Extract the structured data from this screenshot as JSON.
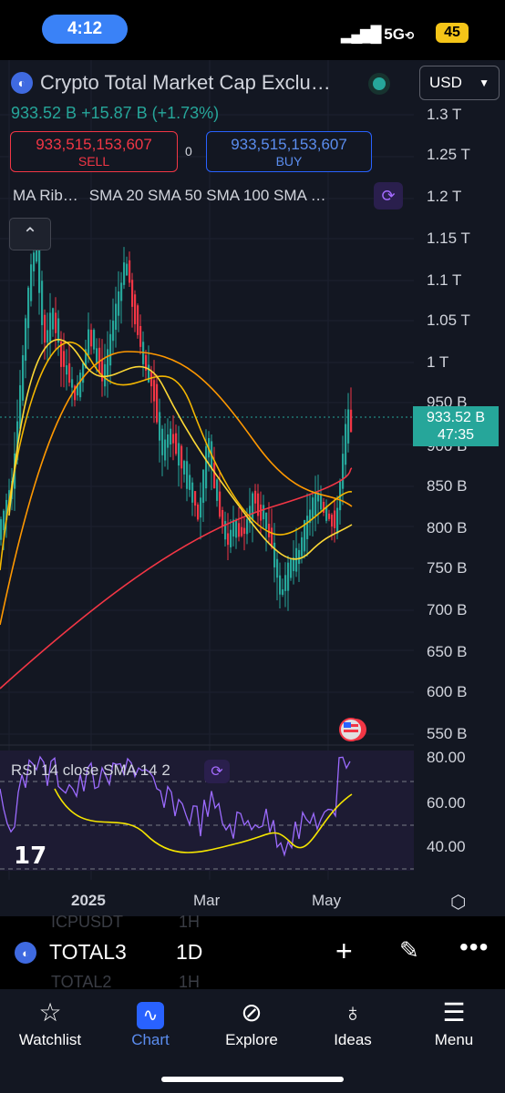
{
  "status_bar": {
    "time": "4:12",
    "network": "5G",
    "battery": "45"
  },
  "header": {
    "symbol_title": "Crypto Total Market Cap Exclu…",
    "currency": "USD",
    "price_line": "933.52 B  +15.87 B (+1.73%)",
    "sell_value": "933,515,153,607",
    "sell_label": "SELL",
    "buy_value": "933,515,153,607",
    "buy_label": "BUY",
    "spread": "0"
  },
  "indicators": {
    "ribbon": "MA Rib…",
    "smas": "SMA 20 SMA 50 SMA 100 SMA …"
  },
  "price_axis": {
    "labels": [
      "1.3 T",
      "1.25 T",
      "1.2 T",
      "1.15 T",
      "1.1 T",
      "1.05 T",
      "1 T",
      "950 B",
      "900 B",
      "850 B",
      "800 B",
      "750 B",
      "700 B",
      "650 B",
      "600 B",
      "550 B"
    ],
    "current_price": "933.52 B",
    "countdown": "47:35"
  },
  "rsi": {
    "label": "RSI 14 close SMA 14 2",
    "axis_labels": [
      "80.00",
      "60.00",
      "40.00"
    ]
  },
  "time_axis": {
    "labels": [
      "2025",
      "Mar",
      "May"
    ]
  },
  "toolbar": {
    "symbol": "TOTAL3",
    "interval": "1D",
    "ghost_symbols": [
      "ICPUSDT",
      "TOTAL2"
    ],
    "ghost_interval": "1H"
  },
  "tabs": [
    {
      "label": "Watchlist",
      "icon": "star-icon"
    },
    {
      "label": "Chart",
      "icon": "chart-icon"
    },
    {
      "label": "Explore",
      "icon": "compass-icon"
    },
    {
      "label": "Ideas",
      "icon": "lightbulb-icon"
    },
    {
      "label": "Menu",
      "icon": "hamburger-icon"
    }
  ],
  "colors": {
    "up": "#26a69a",
    "down": "#f23645",
    "accent": "#2962ff",
    "background": "#131722"
  }
}
